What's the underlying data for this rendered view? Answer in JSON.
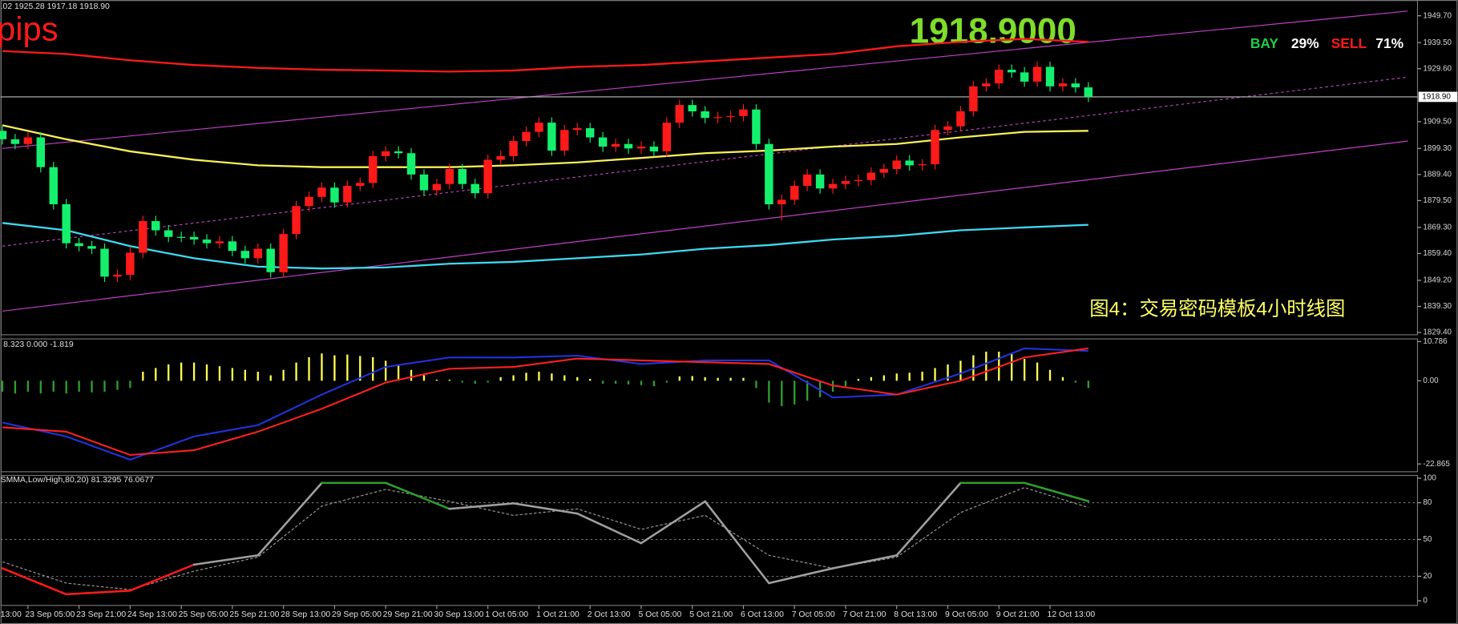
{
  "chart_data": [
    {
      "type": "candlestick",
      "header": ".02 1925.28 1917.18 1918.90",
      "pips_label": "pips",
      "price_display": "1918.9000",
      "bay_label": "BAY",
      "bay_value": "29%",
      "sell_label": "SELL",
      "sell_value": "71%",
      "annotation": "图4：交易密码模板4小时线图",
      "open": [
        1906.0,
        1902.8,
        1901.0,
        1903.5,
        1892.2,
        1878.1,
        1863.3,
        1862.2,
        1861.2,
        1850.6,
        1851.3,
        1859.7,
        1871.7,
        1868.2,
        1865.7,
        1865.7,
        1864.7,
        1863.3,
        1864.0,
        1860.4,
        1857.6,
        1861.2,
        1852.3,
        1866.8,
        1877.4,
        1880.9,
        1884.4,
        1878.8,
        1885.1,
        1886.2,
        1896.4,
        1898.2,
        1897.5,
        1889.4,
        1883.4,
        1885.8,
        1891.5,
        1885.8,
        1882.3,
        1895.0,
        1896.4,
        1902.1,
        1905.6,
        1909.1,
        1898.5,
        1906.3,
        1907.0,
        1903.5,
        1900.0,
        1901.0,
        1899.3,
        1900.0,
        1898.2,
        1909.1,
        1915.8,
        1913.4,
        1910.9,
        1911.2,
        1911.6,
        1914.1,
        1901.0,
        1878.1,
        1879.8,
        1885.1,
        1889.4,
        1884.1,
        1885.8,
        1886.9,
        1887.3,
        1890.1,
        1891.5,
        1894.7,
        1892.9,
        1893.3,
        1906.3,
        1907.7,
        1913.4,
        1922.9,
        1924.0,
        1929.2,
        1928.2,
        1924.7,
        1930.3,
        1922.9,
        1924.0,
        1922.5
      ],
      "high": [
        1908.0,
        1904.8,
        1905.5,
        1905.5,
        1894.2,
        1880.1,
        1865.3,
        1864.2,
        1863.2,
        1853.3,
        1861.7,
        1873.7,
        1873.7,
        1870.2,
        1867.7,
        1867.7,
        1866.7,
        1866.0,
        1866.0,
        1862.4,
        1863.2,
        1863.2,
        1868.8,
        1879.4,
        1882.9,
        1886.4,
        1886.4,
        1887.1,
        1888.2,
        1898.4,
        1900.2,
        1900.2,
        1899.5,
        1891.4,
        1887.8,
        1893.5,
        1893.5,
        1887.8,
        1897.0,
        1898.4,
        1904.1,
        1907.6,
        1911.1,
        1911.1,
        1908.3,
        1909.0,
        1909.0,
        1905.5,
        1903.0,
        1903.0,
        1902.0,
        1902.0,
        1911.1,
        1917.8,
        1917.8,
        1915.4,
        1913.2,
        1913.6,
        1916.1,
        1916.1,
        1903.0,
        1881.8,
        1887.1,
        1891.4,
        1891.4,
        1887.8,
        1888.9,
        1889.3,
        1892.1,
        1893.5,
        1896.7,
        1896.7,
        1895.3,
        1908.3,
        1909.7,
        1915.4,
        1924.9,
        1926.0,
        1931.2,
        1931.2,
        1930.2,
        1932.3,
        1932.3,
        1926.0,
        1926.0,
        1924.5
      ],
      "low": [
        1900.8,
        1899.0,
        1899.0,
        1890.2,
        1876.1,
        1861.3,
        1860.2,
        1859.2,
        1848.6,
        1848.6,
        1849.3,
        1857.7,
        1866.2,
        1863.7,
        1863.7,
        1862.7,
        1861.3,
        1861.3,
        1858.4,
        1855.6,
        1855.6,
        1850.3,
        1850.3,
        1864.8,
        1875.4,
        1878.9,
        1876.8,
        1876.8,
        1883.1,
        1884.2,
        1894.4,
        1895.5,
        1887.4,
        1881.4,
        1881.4,
        1883.8,
        1883.8,
        1880.3,
        1880.3,
        1893.0,
        1894.4,
        1900.1,
        1903.6,
        1896.5,
        1896.5,
        1904.3,
        1901.5,
        1898.0,
        1898.0,
        1897.3,
        1897.3,
        1896.2,
        1896.2,
        1907.1,
        1911.4,
        1908.9,
        1908.9,
        1909.2,
        1909.6,
        1899.0,
        1876.1,
        1872.0,
        1877.8,
        1883.1,
        1882.1,
        1882.1,
        1883.8,
        1884.9,
        1885.3,
        1888.1,
        1889.5,
        1890.9,
        1890.9,
        1891.3,
        1904.3,
        1905.7,
        1911.4,
        1920.9,
        1922.0,
        1926.2,
        1922.7,
        1922.7,
        1920.9,
        1920.9,
        1920.5,
        1916.9
      ],
      "close": [
        1902.8,
        1901.0,
        1903.5,
        1892.2,
        1878.1,
        1863.3,
        1862.2,
        1861.2,
        1850.6,
        1851.3,
        1859.7,
        1871.7,
        1868.2,
        1865.7,
        1865.7,
        1864.7,
        1863.3,
        1864.0,
        1860.4,
        1857.6,
        1861.2,
        1852.3,
        1866.8,
        1877.4,
        1880.9,
        1884.4,
        1878.8,
        1885.1,
        1886.2,
        1896.4,
        1898.2,
        1897.5,
        1889.4,
        1883.4,
        1885.8,
        1891.5,
        1885.8,
        1882.3,
        1895.0,
        1896.4,
        1902.1,
        1905.6,
        1909.1,
        1898.5,
        1906.3,
        1907.0,
        1903.5,
        1900.0,
        1901.0,
        1899.3,
        1900.0,
        1898.2,
        1909.1,
        1915.8,
        1913.4,
        1910.9,
        1911.2,
        1911.6,
        1914.1,
        1901.0,
        1878.1,
        1879.8,
        1885.1,
        1889.4,
        1884.1,
        1885.8,
        1886.9,
        1887.3,
        1890.1,
        1891.5,
        1894.7,
        1892.9,
        1893.3,
        1906.3,
        1907.7,
        1913.4,
        1922.9,
        1924.0,
        1929.2,
        1928.2,
        1924.7,
        1930.3,
        1922.9,
        1924.0,
        1922.5,
        1918.9
      ],
      "up_color": "#ff1a1a",
      "down_color": "#14f06e",
      "ylim": [
        1828.7,
        1955.7
      ],
      "yticks": [
        {
          "value": 1949.7,
          "label": "1949.70"
        },
        {
          "value": 1939.5,
          "label": "1939.50"
        },
        {
          "value": 1929.6,
          "label": "1929.60"
        },
        {
          "value": 1909.5,
          "label": "1909.50"
        },
        {
          "value": 1899.3,
          "label": "1899.30"
        },
        {
          "value": 1889.4,
          "label": "1889.40"
        },
        {
          "value": 1879.5,
          "label": "1879.50"
        },
        {
          "value": 1869.3,
          "label": "1869.30"
        },
        {
          "value": 1859.4,
          "label": "1859.40"
        },
        {
          "value": 1849.2,
          "label": "1849.20"
        },
        {
          "value": 1839.3,
          "label": "1839.30"
        },
        {
          "value": 1829.4,
          "label": "1829.40"
        }
      ],
      "current_price": {
        "value": 1918.9,
        "label": "1918.90"
      },
      "overlay_x": [
        0,
        5,
        10,
        15,
        20,
        25,
        30,
        35,
        40,
        45,
        50,
        55,
        60,
        65,
        70,
        75,
        80,
        85
      ],
      "overlays": [
        {
          "color": "#ff1a1a",
          "values": [
            1936.3,
            1935.2,
            1932.8,
            1931.0,
            1929.9,
            1929.2,
            1928.9,
            1928.5,
            1928.9,
            1930.3,
            1931.0,
            1932.4,
            1933.8,
            1935.2,
            1938.1,
            1939.8,
            1940.9,
            1939.8
          ]
        },
        {
          "color": "#f7ef5a",
          "values": [
            1908.1,
            1902.8,
            1898.2,
            1895.0,
            1892.9,
            1892.2,
            1892.2,
            1892.2,
            1892.9,
            1894.0,
            1895.7,
            1897.5,
            1898.5,
            1900.0,
            1901.0,
            1903.5,
            1905.6,
            1906.0
          ]
        },
        {
          "color": "#3fd8f0",
          "values": [
            1871.0,
            1868.2,
            1862.2,
            1857.6,
            1854.4,
            1853.7,
            1854.1,
            1855.5,
            1856.2,
            1857.6,
            1859.0,
            1861.2,
            1862.6,
            1864.7,
            1866.1,
            1868.2,
            1869.3,
            1870.3
          ]
        }
      ],
      "channels": [
        {
          "color": "#c040c8",
          "dashed": false,
          "x": [
            0,
            110
          ],
          "values": [
            1899.3,
            1951.5
          ]
        },
        {
          "color": "#c040c8",
          "dashed": true,
          "x": [
            0,
            110
          ],
          "values": [
            1862.2,
            1926.4
          ]
        },
        {
          "color": "#c040c8",
          "dashed": false,
          "x": [
            0,
            110
          ],
          "values": [
            1837.5,
            1902.1
          ]
        }
      ]
    },
    {
      "type": "macd",
      "header": "8.323 0.000 -1.819",
      "ylim": [
        -25,
        11.5
      ],
      "yticks": [
        10.786,
        {
          "value": 0,
          "label": "0.00"
        },
        -22.865
      ],
      "histogram": [
        -3,
        -3.5,
        -3,
        -3.5,
        -3,
        -3.5,
        -3,
        -3.2,
        -3,
        -2.5,
        -2,
        2.5,
        3.5,
        4.5,
        5,
        5,
        4.5,
        4,
        3.5,
        3,
        2.5,
        1.5,
        3,
        5,
        6.5,
        7.5,
        7,
        7.2,
        6.8,
        6.5,
        5.5,
        4.5,
        3,
        1.5,
        0.3,
        0.3,
        -0.5,
        -0.8,
        -0.5,
        1,
        1.5,
        2.2,
        2.5,
        2,
        1.5,
        1,
        0.5,
        -0.8,
        -0.8,
        -1,
        -1.2,
        -1.5,
        -0.5,
        1.2,
        1.3,
        1,
        0.8,
        0.8,
        0.8,
        -2,
        -6,
        -7,
        -6.5,
        -5.5,
        -4.5,
        -3,
        -1.5,
        0.5,
        1,
        1.5,
        2,
        2.2,
        2.5,
        3.5,
        4.5,
        5.5,
        7,
        8,
        8,
        7.5,
        6,
        5,
        3,
        1,
        -0.5,
        -2
      ],
      "pos_color": "#ffff55",
      "neg_color": "#2f9e2f",
      "overlay_x": [
        0,
        5,
        10,
        15,
        20,
        25,
        30,
        35,
        40,
        45,
        50,
        55,
        60,
        65,
        70,
        75,
        80,
        85
      ],
      "lines": [
        {
          "color": "#2233dd",
          "values": [
            -11.5,
            -15.3,
            -21.7,
            -15.3,
            -12.2,
            -3.8,
            3.8,
            6.4,
            6.4,
            6.9,
            4.6,
            5.6,
            5.6,
            -4.6,
            -3.8,
            2.0,
            8.9,
            8.2
          ]
        },
        {
          "color": "#ff2020",
          "values": [
            -12.8,
            -14.0,
            -20.4,
            -19.1,
            -14.0,
            -7.7,
            -0.5,
            3.3,
            3.8,
            6.1,
            5.6,
            5.1,
            4.6,
            -1.3,
            -3.8,
            0,
            6.4,
            8.9
          ]
        }
      ]
    },
    {
      "type": "oscillator",
      "header": "SMMA,Low/High,80,20) 81.3295 76.0677",
      "ylim": [
        -3.8,
        102.3
      ],
      "yticks": [
        100,
        80,
        50,
        20,
        0
      ],
      "overlay_x": [
        0,
        5,
        10,
        15,
        20,
        25,
        30,
        35,
        40,
        45,
        50,
        55,
        60,
        65,
        70,
        75,
        80,
        85
      ],
      "main": {
        "color": "#a0a0a0",
        "high_color": "#2e9e2e",
        "low_color": "#ff1a1a",
        "values": [
          26.5,
          5.3,
          8.3,
          29.5,
          37.1,
          96.2,
          96.2,
          75,
          79.5,
          71.2,
          47,
          81.1,
          14.4,
          26.5,
          37.1,
          96.2,
          96.2,
          81.3
        ]
      },
      "signal": {
        "color": "#9a9a9a",
        "values": [
          31.8,
          14.4,
          9.1,
          24.2,
          35.6,
          77.3,
          90.9,
          81.1,
          69.7,
          75,
          58.3,
          69.7,
          37.1,
          26.5,
          35.6,
          72,
          92.4,
          76.1
        ]
      },
      "edge_label": "13:00",
      "categories": [
        null,
        null,
        "23 Sep 05:00",
        null,
        null,
        null,
        "23 Sep 21:00",
        null,
        null,
        null,
        "24 Sep 13:00",
        null,
        null,
        null,
        "25 Sep 05:00",
        null,
        null,
        null,
        "25 Sep 21:00",
        null,
        null,
        null,
        "28 Sep 13:00",
        null,
        null,
        null,
        "29 Sep 05:00",
        null,
        null,
        null,
        "29 Sep 21:00",
        null,
        null,
        null,
        "30 Sep 13:00",
        null,
        null,
        null,
        "1 Oct 05:00",
        null,
        null,
        null,
        "1 Oct 21:00",
        null,
        null,
        null,
        "2 Oct 13:00",
        null,
        null,
        null,
        "5 Oct 05:00",
        null,
        null,
        null,
        "5 Oct 21:00",
        null,
        null,
        null,
        "6 Oct 13:00",
        null,
        null,
        null,
        "7 Oct 05:00",
        null,
        null,
        null,
        "7 Oct 21:00",
        null,
        null,
        null,
        "8 Oct 13:00",
        null,
        null,
        null,
        "9 Oct 05:00",
        null,
        null,
        null,
        "9 Oct 21:00",
        null,
        null,
        null,
        "12 Oct 13:00",
        null,
        null,
        null
      ]
    }
  ]
}
